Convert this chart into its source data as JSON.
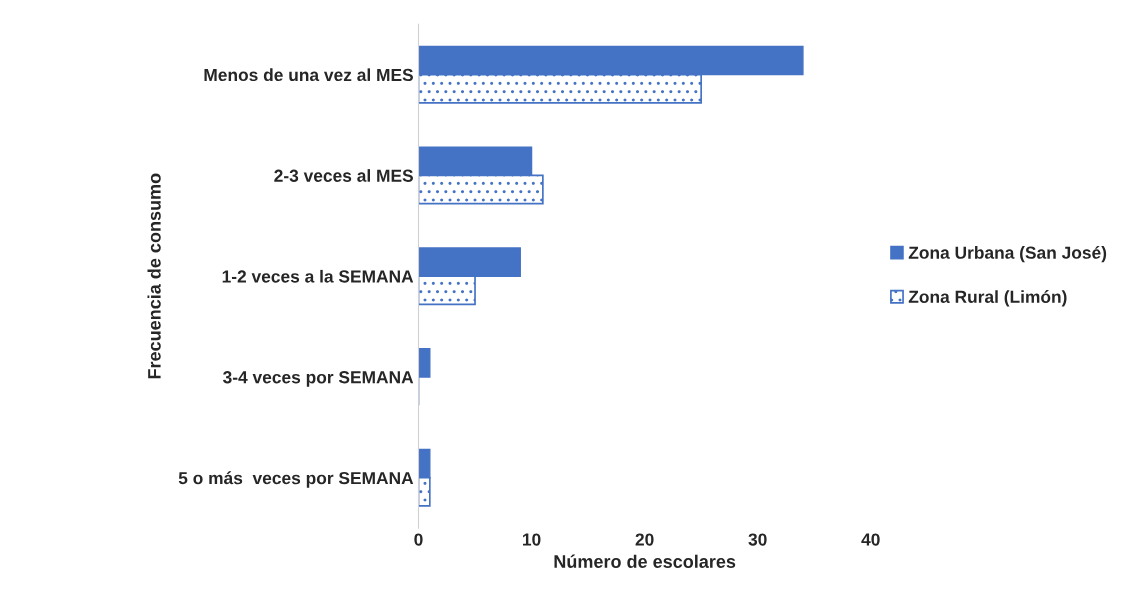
{
  "chart_data": {
    "type": "bar",
    "orientation": "horizontal",
    "xlabel": "Número de escolares",
    "ylabel": "Frecuencia de consumo",
    "categories": [
      "Menos de una vez al MES",
      "2-3 veces al MES",
      "1-2 veces a la SEMANA",
      "3-4 veces por SEMANA",
      "5 o más  veces por SEMANA"
    ],
    "series": [
      {
        "name": "Zona Urbana (San José)",
        "color": "#4472c4",
        "values": [
          34,
          10,
          9,
          1,
          1
        ]
      },
      {
        "name": "Zona Rural (Limón)",
        "color": "#4472c4",
        "values": [
          25,
          11,
          5,
          0,
          1
        ]
      }
    ],
    "xlim": [
      0,
      40
    ],
    "xticks": [
      0,
      10,
      20,
      30,
      40
    ],
    "grid": false,
    "legend": "right"
  }
}
